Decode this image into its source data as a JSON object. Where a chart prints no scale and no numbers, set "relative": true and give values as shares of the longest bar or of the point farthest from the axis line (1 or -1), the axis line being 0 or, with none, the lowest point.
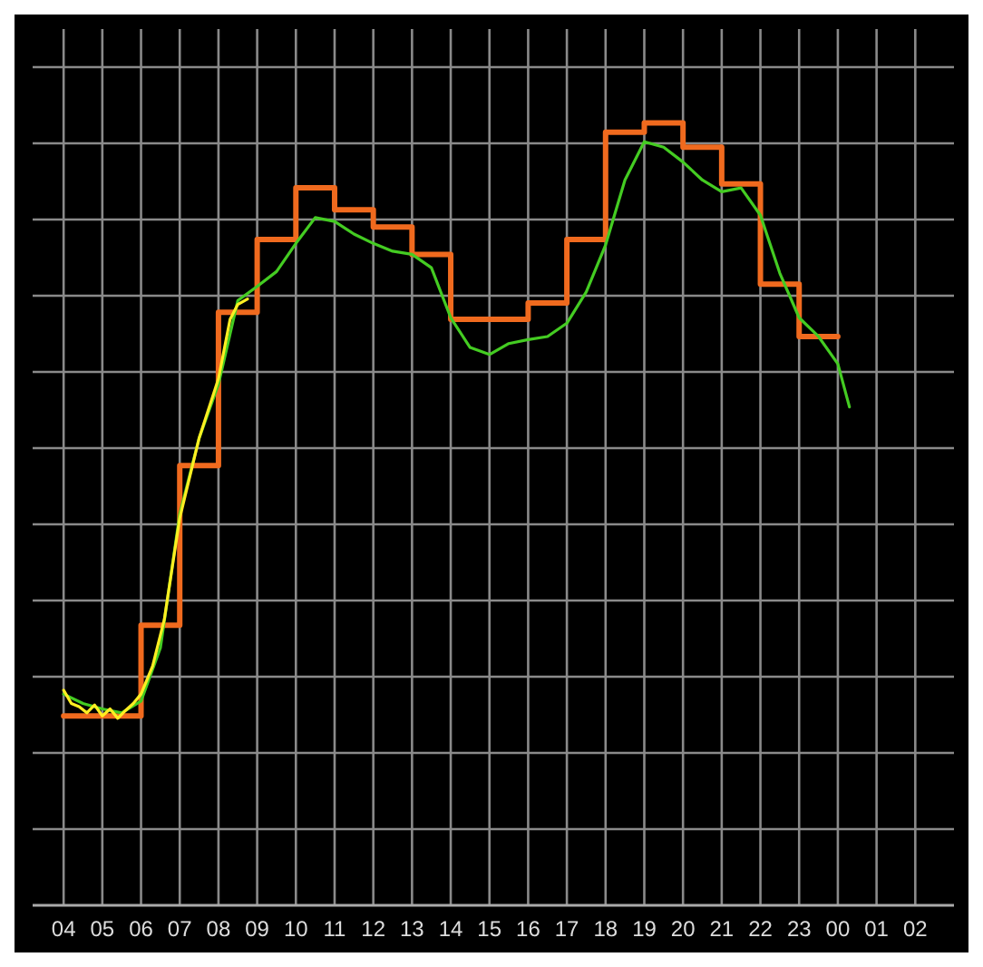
{
  "chart_data": {
    "type": "line",
    "relative": true,
    "xlim": [
      "2000-01-01T03:12",
      "2000-01-02T03:00"
    ],
    "xticks": [
      {
        "value": "2000-01-01T04:00",
        "label": "04"
      },
      {
        "value": "2000-01-01T05:00",
        "label": "05"
      },
      {
        "value": "2000-01-01T06:00",
        "label": "06"
      },
      {
        "value": "2000-01-01T07:00",
        "label": "07"
      },
      {
        "value": "2000-01-01T08:00",
        "label": "08"
      },
      {
        "value": "2000-01-01T09:00",
        "label": "09"
      },
      {
        "value": "2000-01-01T10:00",
        "label": "10"
      },
      {
        "value": "2000-01-01T11:00",
        "label": "11"
      },
      {
        "value": "2000-01-01T12:00",
        "label": "12"
      },
      {
        "value": "2000-01-01T13:00",
        "label": "13"
      },
      {
        "value": "2000-01-01T14:00",
        "label": "14"
      },
      {
        "value": "2000-01-01T15:00",
        "label": "15"
      },
      {
        "value": "2000-01-01T16:00",
        "label": "16"
      },
      {
        "value": "2000-01-01T17:00",
        "label": "17"
      },
      {
        "value": "2000-01-01T18:00",
        "label": "18"
      },
      {
        "value": "2000-01-01T19:00",
        "label": "19"
      },
      {
        "value": "2000-01-01T20:00",
        "label": "20"
      },
      {
        "value": "2000-01-01T21:00",
        "label": "21"
      },
      {
        "value": "2000-01-01T22:00",
        "label": "22"
      },
      {
        "value": "2000-01-01T23:00",
        "label": "23"
      },
      {
        "value": "2000-01-02T00:00",
        "label": "00"
      },
      {
        "value": "2000-01-02T01:00",
        "label": "01"
      },
      {
        "value": "2000-01-02T02:00",
        "label": "02"
      }
    ],
    "grid": true,
    "series": [
      {
        "type": "step",
        "color": "#f06a1e",
        "x": [
          "2000-01-01T04:00",
          "2000-01-01T05:00",
          "2000-01-01T06:00",
          "2000-01-01T07:00",
          "2000-01-01T08:00",
          "2000-01-01T09:00",
          "2000-01-01T10:00",
          "2000-01-01T11:00",
          "2000-01-01T12:00",
          "2000-01-01T13:00",
          "2000-01-01T14:00",
          "2000-01-01T15:00",
          "2000-01-01T16:00",
          "2000-01-01T17:00",
          "2000-01-01T18:00",
          "2000-01-01T19:00",
          "2000-01-01T20:00",
          "2000-01-01T21:00",
          "2000-01-01T22:00",
          "2000-01-01T23:00",
          "2000-01-02T00:00"
        ],
        "values": [
          0.242,
          0.242,
          0.358,
          0.562,
          0.758,
          0.851,
          0.917,
          0.889,
          0.867,
          0.832,
          0.749,
          0.749,
          0.77,
          0.851,
          0.988,
          1,
          0.969,
          0.922,
          0.794,
          0.727,
          0.727
        ]
      },
      {
        "type": "line",
        "color": "#44cc22",
        "x": [
          "2000-01-01T04:00",
          "2000-01-01T04:30",
          "2000-01-01T05:00",
          "2000-01-01T05:30",
          "2000-01-01T06:00",
          "2000-01-01T06:30",
          "2000-01-01T07:00",
          "2000-01-01T07:30",
          "2000-01-01T08:00",
          "2000-01-01T08:30",
          "2000-01-01T09:00",
          "2000-01-01T09:30",
          "2000-01-01T10:00",
          "2000-01-01T10:30",
          "2000-01-01T11:00",
          "2000-01-01T11:30",
          "2000-01-01T12:00",
          "2000-01-01T12:30",
          "2000-01-01T13:00",
          "2000-01-01T13:30",
          "2000-01-01T14:00",
          "2000-01-01T14:30",
          "2000-01-01T15:00",
          "2000-01-01T15:30",
          "2000-01-01T16:00",
          "2000-01-01T16:30",
          "2000-01-01T17:00",
          "2000-01-01T17:30",
          "2000-01-01T18:00",
          "2000-01-01T18:30",
          "2000-01-01T19:00",
          "2000-01-01T19:30",
          "2000-01-01T20:00",
          "2000-01-01T20:30",
          "2000-01-01T21:00",
          "2000-01-01T21:30",
          "2000-01-01T22:00",
          "2000-01-01T22:30",
          "2000-01-01T23:00",
          "2000-01-01T23:30",
          "2000-01-02T00:00",
          "2000-01-02T00:18"
        ],
        "values": [
          0.27,
          0.258,
          0.251,
          0.246,
          0.261,
          0.329,
          0.5,
          0.597,
          0.666,
          0.773,
          0.791,
          0.81,
          0.846,
          0.879,
          0.874,
          0.858,
          0.846,
          0.836,
          0.832,
          0.815,
          0.751,
          0.713,
          0.704,
          0.718,
          0.723,
          0.727,
          0.744,
          0.784,
          0.844,
          0.927,
          0.976,
          0.969,
          0.95,
          0.927,
          0.912,
          0.917,
          0.882,
          0.808,
          0.751,
          0.727,
          0.692,
          0.637
        ]
      },
      {
        "type": "line",
        "color": "#ffee22",
        "x": [
          "2000-01-01T04:00",
          "2000-01-01T04:12",
          "2000-01-01T04:24",
          "2000-01-01T04:36",
          "2000-01-01T04:48",
          "2000-01-01T05:00",
          "2000-01-01T05:12",
          "2000-01-01T05:24",
          "2000-01-01T05:36",
          "2000-01-01T05:48",
          "2000-01-01T06:00",
          "2000-01-01T06:18",
          "2000-01-01T06:36",
          "2000-01-01T07:00",
          "2000-01-01T07:30",
          "2000-01-01T08:00",
          "2000-01-01T08:18",
          "2000-01-01T08:30",
          "2000-01-01T08:45"
        ],
        "values": [
          0.275,
          0.258,
          0.254,
          0.246,
          0.256,
          0.242,
          0.251,
          0.239,
          0.249,
          0.258,
          0.27,
          0.306,
          0.365,
          0.495,
          0.597,
          0.673,
          0.749,
          0.768,
          0.775
        ]
      }
    ]
  }
}
